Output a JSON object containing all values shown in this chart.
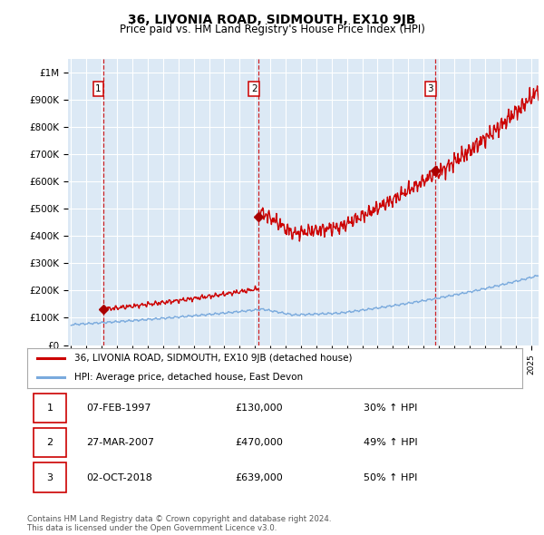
{
  "title": "36, LIVONIA ROAD, SIDMOUTH, EX10 9JB",
  "subtitle": "Price paid vs. HM Land Registry's House Price Index (HPI)",
  "ylabel_ticks": [
    "£0",
    "£100K",
    "£200K",
    "£300K",
    "£400K",
    "£500K",
    "£600K",
    "£700K",
    "£800K",
    "£900K",
    "£1M"
  ],
  "ytick_values": [
    0,
    100000,
    200000,
    300000,
    400000,
    500000,
    600000,
    700000,
    800000,
    900000,
    1000000
  ],
  "ylim": [
    0,
    1050000
  ],
  "xmin": 1994.8,
  "xmax": 2025.5,
  "sale_dates": [
    1997.08,
    2007.23,
    2018.75
  ],
  "sale_prices": [
    130000,
    470000,
    639000
  ],
  "sale_labels": [
    "1",
    "2",
    "3"
  ],
  "vline_color": "#cc0000",
  "sale_marker_color": "#aa0000",
  "legend_entries": [
    "36, LIVONIA ROAD, SIDMOUTH, EX10 9JB (detached house)",
    "HPI: Average price, detached house, East Devon"
  ],
  "legend_line_colors": [
    "#cc0000",
    "#7aaadd"
  ],
  "table_rows": [
    [
      "1",
      "07-FEB-1997",
      "£130,000",
      "30% ↑ HPI"
    ],
    [
      "2",
      "27-MAR-2007",
      "£470,000",
      "49% ↑ HPI"
    ],
    [
      "3",
      "02-OCT-2018",
      "£639,000",
      "50% ↑ HPI"
    ]
  ],
  "footnote": "Contains HM Land Registry data © Crown copyright and database right 2024.\nThis data is licensed under the Open Government Licence v3.0.",
  "bg_color": "#ffffff",
  "plot_bg_color": "#dce9f5",
  "grid_color": "#ffffff",
  "title_fontsize": 10,
  "subtitle_fontsize": 8.5
}
